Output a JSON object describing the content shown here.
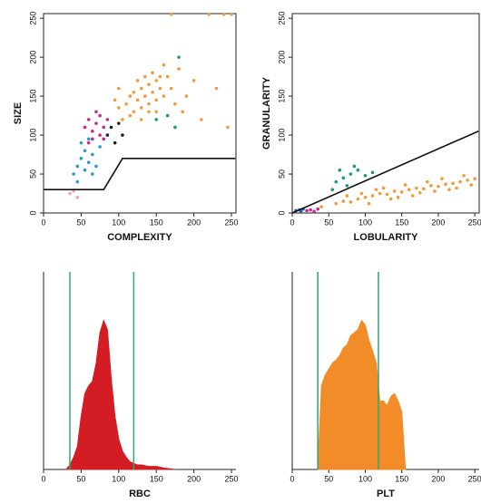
{
  "chart_data": [
    {
      "type": "scatter",
      "xlabel": "COMPLEXITY",
      "ylabel": "SIZE",
      "xlim": [
        0,
        256
      ],
      "ylim": [
        0,
        256
      ],
      "xticks": [
        0,
        50,
        100,
        150,
        200,
        250
      ],
      "yticks": [
        0,
        50,
        100,
        150,
        200,
        250
      ],
      "boundary": {
        "x": [
          0,
          80,
          105,
          255
        ],
        "y": [
          30,
          30,
          70,
          70
        ]
      },
      "series": [
        {
          "color": "#f39a3c",
          "x": [
            110,
            115,
            120,
            125,
            130,
            135,
            140,
            145,
            150,
            120,
            130,
            140,
            125,
            135,
            145,
            155,
            160,
            150,
            115,
            105,
            100,
            165,
            170,
            160,
            175,
            185,
            190,
            210,
            230,
            245,
            100,
            95,
            140,
            130,
            150,
            155,
            180,
            200,
            220,
            240,
            170,
            250
          ],
          "values": [
            140,
            150,
            155,
            145,
            160,
            150,
            165,
            155,
            170,
            130,
            135,
            140,
            170,
            175,
            180,
            160,
            150,
            145,
            125,
            120,
            135,
            175,
            160,
            190,
            140,
            130,
            150,
            120,
            160,
            110,
            160,
            145,
            130,
            120,
            130,
            175,
            185,
            170,
            255,
            255,
            255,
            255
          ]
        },
        {
          "color": "#c8288c",
          "x": [
            55,
            60,
            65,
            70,
            75,
            65,
            75,
            80,
            60,
            70,
            85,
            80
          ],
          "values": [
            110,
            120,
            105,
            115,
            125,
            95,
            100,
            110,
            90,
            130,
            120,
            95
          ]
        },
        {
          "color": "#2a9cc4",
          "x": [
            40,
            45,
            50,
            55,
            60,
            65,
            55,
            50,
            60,
            70,
            75,
            45,
            65
          ],
          "values": [
            50,
            60,
            70,
            80,
            65,
            75,
            55,
            90,
            95,
            60,
            85,
            40,
            50
          ]
        },
        {
          "color": "#222222",
          "x": [
            85,
            90,
            100,
            95,
            105
          ],
          "values": [
            100,
            110,
            115,
            90,
            100
          ]
        },
        {
          "color": "#1e9a6a",
          "x": [
            150,
            165,
            175,
            180
          ],
          "values": [
            120,
            125,
            110,
            200
          ]
        },
        {
          "color": "#f0a8b4",
          "x": [
            35,
            45,
            40
          ],
          "values": [
            25,
            20,
            28
          ]
        }
      ]
    },
    {
      "type": "scatter",
      "xlabel": "LOBULARITY",
      "ylabel": "GRANULARITY",
      "xlim": [
        0,
        256
      ],
      "ylim": [
        0,
        256
      ],
      "xticks": [
        0,
        50,
        100,
        150,
        200,
        250
      ],
      "yticks": [
        0,
        50,
        100,
        150,
        200,
        250
      ],
      "boundary": {
        "x": [
          0,
          255
        ],
        "y": [
          0,
          105
        ]
      },
      "series": [
        {
          "color": "#f39a3c",
          "x": [
            40,
            60,
            70,
            80,
            90,
            100,
            110,
            120,
            130,
            140,
            150,
            160,
            170,
            180,
            190,
            200,
            210,
            220,
            230,
            240,
            250,
            95,
            125,
            155,
            185,
            215,
            105,
            135,
            165,
            195,
            225,
            245,
            75,
            115,
            145,
            175,
            205,
            235
          ],
          "values": [
            8,
            12,
            15,
            14,
            18,
            20,
            22,
            25,
            24,
            28,
            27,
            30,
            32,
            31,
            35,
            34,
            37,
            38,
            40,
            42,
            44,
            25,
            32,
            36,
            40,
            30,
            12,
            18,
            22,
            28,
            32,
            36,
            22,
            30,
            20,
            26,
            44,
            48
          ]
        },
        {
          "color": "#1e9a7a",
          "x": [
            60,
            70,
            80,
            90,
            75,
            85,
            100,
            110,
            55,
            65
          ],
          "values": [
            40,
            45,
            50,
            55,
            35,
            60,
            48,
            52,
            30,
            55
          ]
        },
        {
          "color": "#c8288c",
          "x": [
            20,
            25,
            30,
            35
          ],
          "values": [
            3,
            4,
            2,
            5
          ]
        },
        {
          "color": "#2a5cc4",
          "x": [
            5,
            10,
            12,
            15
          ],
          "values": [
            3,
            4,
            2,
            5
          ]
        }
      ]
    },
    {
      "type": "area",
      "xlabel": "RBC",
      "color": "#d41c24",
      "xlim": [
        0,
        256
      ],
      "ylim": [
        0,
        130
      ],
      "xticks": [
        0,
        50,
        100,
        150,
        200,
        250
      ],
      "markers": [
        35,
        120
      ],
      "x": [
        30,
        35,
        40,
        45,
        50,
        55,
        60,
        65,
        70,
        75,
        80,
        85,
        90,
        95,
        100,
        105,
        110,
        115,
        120,
        125,
        130,
        140,
        150,
        160,
        175
      ],
      "values": [
        0,
        3,
        8,
        15,
        35,
        50,
        55,
        58,
        70,
        90,
        98,
        92,
        60,
        35,
        20,
        12,
        8,
        5,
        4,
        3,
        3,
        2,
        2,
        1,
        0
      ]
    },
    {
      "type": "area",
      "xlabel": "PLT",
      "color": "#f28c28",
      "xlim": [
        0,
        256
      ],
      "ylim": [
        0,
        130
      ],
      "xticks": [
        0,
        50,
        100,
        150,
        200,
        250
      ],
      "markers": [
        35,
        118
      ],
      "x": [
        35,
        40,
        45,
        50,
        55,
        60,
        65,
        70,
        75,
        80,
        85,
        90,
        95,
        100,
        105,
        110,
        115,
        120,
        125,
        130,
        135,
        140,
        145,
        150,
        155
      ],
      "values": [
        0,
        55,
        62,
        66,
        70,
        72,
        75,
        80,
        82,
        88,
        90,
        92,
        98,
        95,
        85,
        78,
        70,
        45,
        45,
        42,
        48,
        50,
        45,
        38,
        0
      ]
    }
  ]
}
